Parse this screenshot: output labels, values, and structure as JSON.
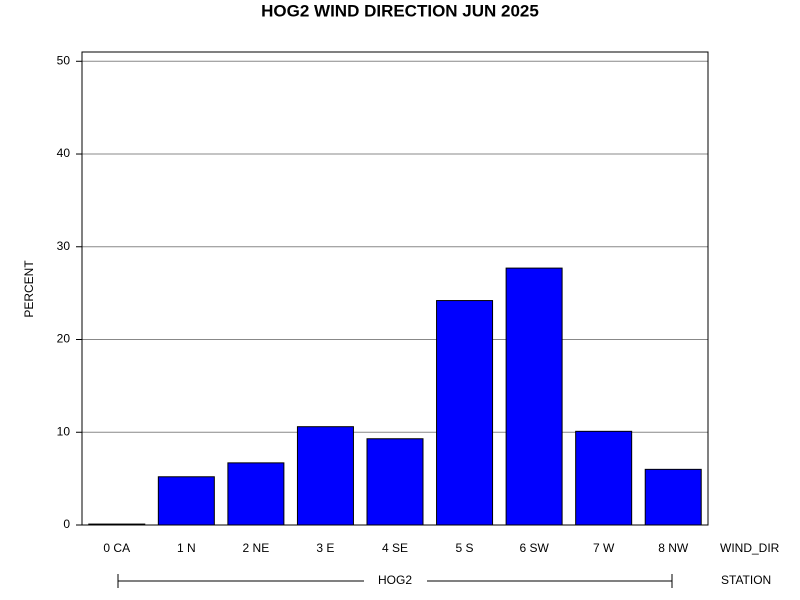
{
  "chart_data": {
    "type": "bar",
    "title": "HOG2 WIND DIRECTION JUN 2025",
    "ylabel": "PERCENT",
    "xlabel": "WIND_DIR",
    "categories": [
      "0 CA",
      "1 N",
      "2 NE",
      "3 E",
      "4 SE",
      "5 S",
      "6 SW",
      "7 W",
      "8 NW"
    ],
    "values": [
      0.1,
      5.2,
      6.7,
      10.6,
      9.3,
      24.2,
      27.7,
      10.1,
      6.0
    ],
    "color": "#0000ff",
    "ylim": [
      0,
      51
    ],
    "yticks": [
      0,
      10,
      20,
      30,
      40,
      50
    ],
    "grid": true,
    "group": {
      "label": "HOG2",
      "axis_label": "STATION"
    }
  }
}
